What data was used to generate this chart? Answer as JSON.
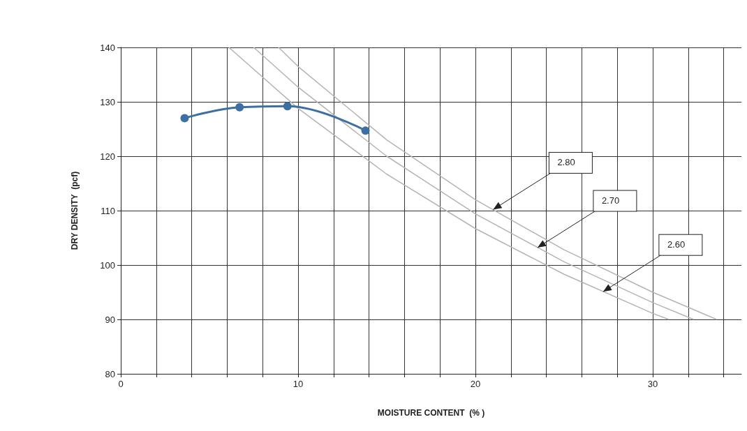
{
  "chart_data": {
    "type": "line",
    "xlabel": "MOISTURE CONTENT  (% )",
    "ylabel": "DRY DENSITY  (pcf)",
    "xlim": [
      0,
      35
    ],
    "ylim": [
      80,
      140
    ],
    "xticks": [
      0,
      {
        "value": 2,
        "label": null
      },
      {
        "value": 4,
        "label": null
      },
      {
        "value": 6,
        "label": null
      },
      {
        "value": 8,
        "label": null
      },
      10,
      {
        "value": 12,
        "label": null
      },
      {
        "value": 14,
        "label": null
      },
      {
        "value": 16,
        "label": null
      },
      {
        "value": 18,
        "label": null
      },
      20,
      {
        "value": 22,
        "label": null
      },
      {
        "value": 24,
        "label": null
      },
      {
        "value": 26,
        "label": null
      },
      {
        "value": 28,
        "label": null
      },
      30,
      {
        "value": 32,
        "label": null
      },
      {
        "value": 34,
        "label": null
      }
    ],
    "yticks": [
      80,
      90,
      100,
      110,
      120,
      130,
      140
    ],
    "grid": true,
    "series": [
      {
        "color": "#3d6fa3",
        "marker": "circle",
        "x": [
          3.6,
          6.7,
          9.4,
          13.8
        ],
        "values": [
          127,
          129,
          129.2,
          124.7
        ]
      },
      {
        "color": "#b4b4b4",
        "marker": "none",
        "x": [
          8.9,
          10,
          15,
          20,
          25,
          30,
          33.6
        ],
        "values": [
          140,
          136.5,
          123,
          112,
          102.8,
          95,
          90
        ]
      },
      {
        "color": "#b4b4b4",
        "marker": "none",
        "x": [
          7.5,
          10,
          15,
          20,
          25,
          30,
          32.3
        ],
        "values": [
          140,
          132.7,
          120,
          109.4,
          100.6,
          93.1,
          90
        ]
      },
      {
        "color": "#b4b4b4",
        "marker": "none",
        "x": [
          6.1,
          10,
          15,
          20,
          25,
          30,
          30.9
        ],
        "values": [
          140,
          128.8,
          116.7,
          106.7,
          98.3,
          91.1,
          90
        ]
      }
    ],
    "annotations": [
      {
        "text": "2.80",
        "x": 21,
        "y": 110.2
      },
      {
        "text": "2.70",
        "x": 23.5,
        "y": 103.2
      },
      {
        "text": "2.60",
        "x": 27.2,
        "y": 95.1
      }
    ]
  }
}
